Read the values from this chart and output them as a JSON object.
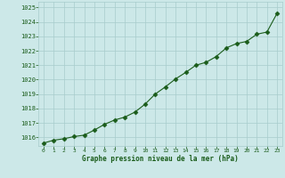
{
  "x": [
    0,
    1,
    2,
    3,
    4,
    5,
    6,
    7,
    8,
    9,
    10,
    11,
    12,
    13,
    14,
    15,
    16,
    17,
    18,
    19,
    20,
    21,
    22,
    23
  ],
  "y": [
    1015.6,
    1015.8,
    1015.9,
    1016.05,
    1016.15,
    1016.5,
    1016.9,
    1017.2,
    1017.4,
    1017.75,
    1018.3,
    1019.0,
    1019.5,
    1020.05,
    1020.5,
    1021.0,
    1021.2,
    1021.6,
    1022.2,
    1022.5,
    1022.65,
    1023.15,
    1023.3,
    1024.6
  ],
  "ylim": [
    1015.4,
    1025.4
  ],
  "yticks": [
    1016,
    1017,
    1018,
    1019,
    1020,
    1021,
    1022,
    1023,
    1024,
    1025
  ],
  "xticks": [
    0,
    1,
    2,
    3,
    4,
    5,
    6,
    7,
    8,
    9,
    10,
    11,
    12,
    13,
    14,
    15,
    16,
    17,
    18,
    19,
    20,
    21,
    22,
    23
  ],
  "xlabel": "Graphe pression niveau de la mer (hPa)",
  "line_color": "#1a5c1a",
  "marker_color": "#1a5c1a",
  "bg_color": "#cce8e8",
  "grid_color": "#a8cccc",
  "tick_label_color": "#1a5c1a",
  "xlabel_color": "#1a5c1a"
}
